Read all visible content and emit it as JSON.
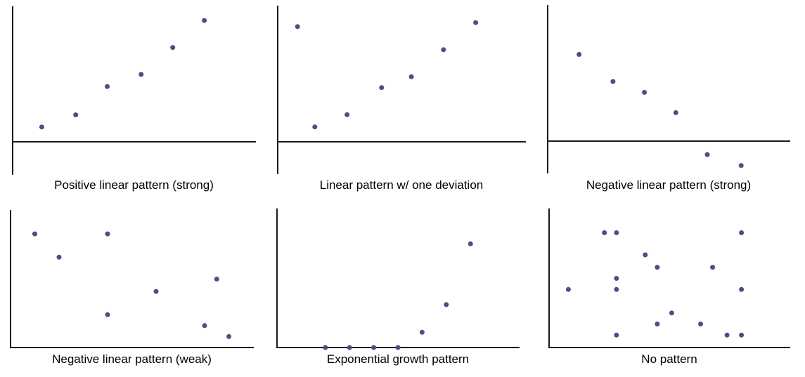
{
  "style": {
    "dot_color": "#504d85",
    "axis_color": "#1a1a1a",
    "background": "#ffffff",
    "caption_color": "#000000",
    "marker_shape": "circle"
  },
  "chart_data": [
    {
      "type": "scatter",
      "title": "Positive linear pattern (strong)",
      "xlabel": "",
      "ylabel": "",
      "xlim": [
        0,
        10
      ],
      "ylim": [
        -2.4,
        10
      ],
      "grid": false,
      "axes_note": "unlabeled axes, y-axis extends below x-axis",
      "points": [
        [
          1.2,
          1.1
        ],
        [
          2.6,
          2.0
        ],
        [
          3.9,
          4.1
        ],
        [
          5.3,
          5.0
        ],
        [
          6.6,
          7.0
        ],
        [
          7.9,
          9.0
        ]
      ]
    },
    {
      "type": "scatter",
      "title": "Linear pattern w/ one deviation",
      "xlabel": "",
      "ylabel": "",
      "xlim": [
        0,
        10
      ],
      "ylim": [
        -2.3,
        10
      ],
      "grid": false,
      "axes_note": "unlabeled axes, y-axis extends below x-axis",
      "points": [
        [
          0.8,
          8.5
        ],
        [
          1.5,
          1.1
        ],
        [
          2.8,
          2.0
        ],
        [
          4.2,
          4.0
        ],
        [
          5.4,
          4.8
        ],
        [
          6.7,
          6.8
        ],
        [
          8.0,
          8.8
        ]
      ]
    },
    {
      "type": "scatter",
      "title": "Negative linear pattern (strong)",
      "xlabel": "",
      "ylabel": "",
      "xlim": [
        0,
        10
      ],
      "ylim": [
        -2.3,
        10
      ],
      "grid": false,
      "axes_note": "unlabeled axes, y-axis extends below x-axis; last two points fall below the x-axis",
      "points": [
        [
          1.3,
          6.4
        ],
        [
          2.7,
          4.4
        ],
        [
          4.0,
          3.6
        ],
        [
          5.3,
          2.1
        ],
        [
          6.6,
          -1.0
        ],
        [
          8.0,
          -1.8
        ]
      ]
    },
    {
      "type": "scatter",
      "title": "Negative linear pattern (weak)",
      "xlabel": "",
      "ylabel": "",
      "xlim": [
        0,
        10
      ],
      "ylim": [
        0,
        10
      ],
      "grid": false,
      "axes_note": "unlabeled corner axes",
      "points": [
        [
          1.0,
          8.3
        ],
        [
          2.0,
          6.6
        ],
        [
          4.0,
          8.3
        ],
        [
          4.0,
          2.4
        ],
        [
          6.0,
          4.1
        ],
        [
          8.0,
          1.6
        ],
        [
          8.5,
          5.0
        ],
        [
          9.0,
          0.8
        ]
      ]
    },
    {
      "type": "scatter",
      "title": "Exponential growth pattern",
      "xlabel": "",
      "ylabel": "",
      "xlim": [
        0,
        10
      ],
      "ylim": [
        0,
        10
      ],
      "grid": false,
      "axes_note": "unlabeled corner axes; first four points lie on the x-axis",
      "points": [
        [
          2.0,
          0
        ],
        [
          3.0,
          0
        ],
        [
          4.0,
          0
        ],
        [
          5.0,
          0
        ],
        [
          6.0,
          1.1
        ],
        [
          7.0,
          3.1
        ],
        [
          8.0,
          7.5
        ]
      ]
    },
    {
      "type": "scatter",
      "title": "No pattern",
      "xlabel": "",
      "ylabel": "",
      "xlim": [
        0,
        10
      ],
      "ylim": [
        0,
        10
      ],
      "grid": false,
      "axes_note": "unlabeled corner axes",
      "points": [
        [
          2.3,
          8.3
        ],
        [
          2.8,
          8.3
        ],
        [
          8.0,
          8.3
        ],
        [
          4.0,
          6.7
        ],
        [
          4.5,
          5.8
        ],
        [
          6.8,
          5.8
        ],
        [
          2.8,
          5.0
        ],
        [
          0.8,
          4.2
        ],
        [
          2.8,
          4.2
        ],
        [
          8.0,
          4.2
        ],
        [
          5.1,
          2.5
        ],
        [
          4.5,
          1.7
        ],
        [
          6.3,
          1.7
        ],
        [
          2.8,
          0.9
        ],
        [
          7.4,
          0.9
        ],
        [
          8.0,
          0.9
        ]
      ]
    }
  ]
}
